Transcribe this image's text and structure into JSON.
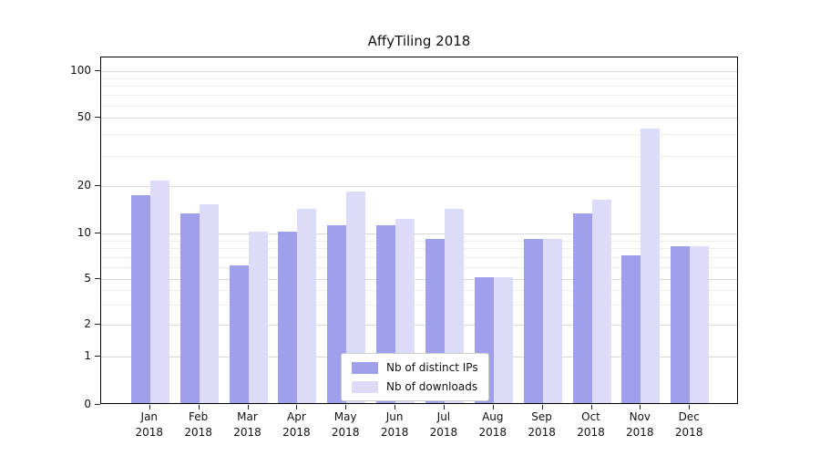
{
  "title": "AffyTiling 2018",
  "chart_data": {
    "type": "bar",
    "title": "AffyTiling 2018",
    "categories": [
      "Jan",
      "Feb",
      "Mar",
      "Apr",
      "May",
      "Jun",
      "Jul",
      "Aug",
      "Sep",
      "Oct",
      "Nov",
      "Dec"
    ],
    "year": "2018",
    "series": [
      {
        "name": "Nb of distinct IPs",
        "color": "#9f9fec",
        "values": [
          17,
          13,
          6,
          10,
          11,
          11,
          9,
          5,
          9,
          13,
          7,
          8
        ]
      },
      {
        "name": "Nb of downloads",
        "color": "#dcdcf8",
        "values": [
          21,
          15,
          10,
          14,
          18,
          12,
          14,
          5,
          9,
          16,
          42,
          8
        ]
      }
    ],
    "xlabel": "",
    "ylabel": "",
    "y_ticks": [
      0,
      1,
      2,
      5,
      10,
      20,
      50,
      100
    ],
    "y_minor_ticks": [
      3,
      4,
      6,
      7,
      8,
      9,
      30,
      40,
      60,
      70,
      80,
      90
    ],
    "yscale": "log-like with 0 baseline",
    "ylim": [
      0,
      120
    ],
    "grid": "horizontal",
    "legend_position": "lower center, inside plot"
  }
}
